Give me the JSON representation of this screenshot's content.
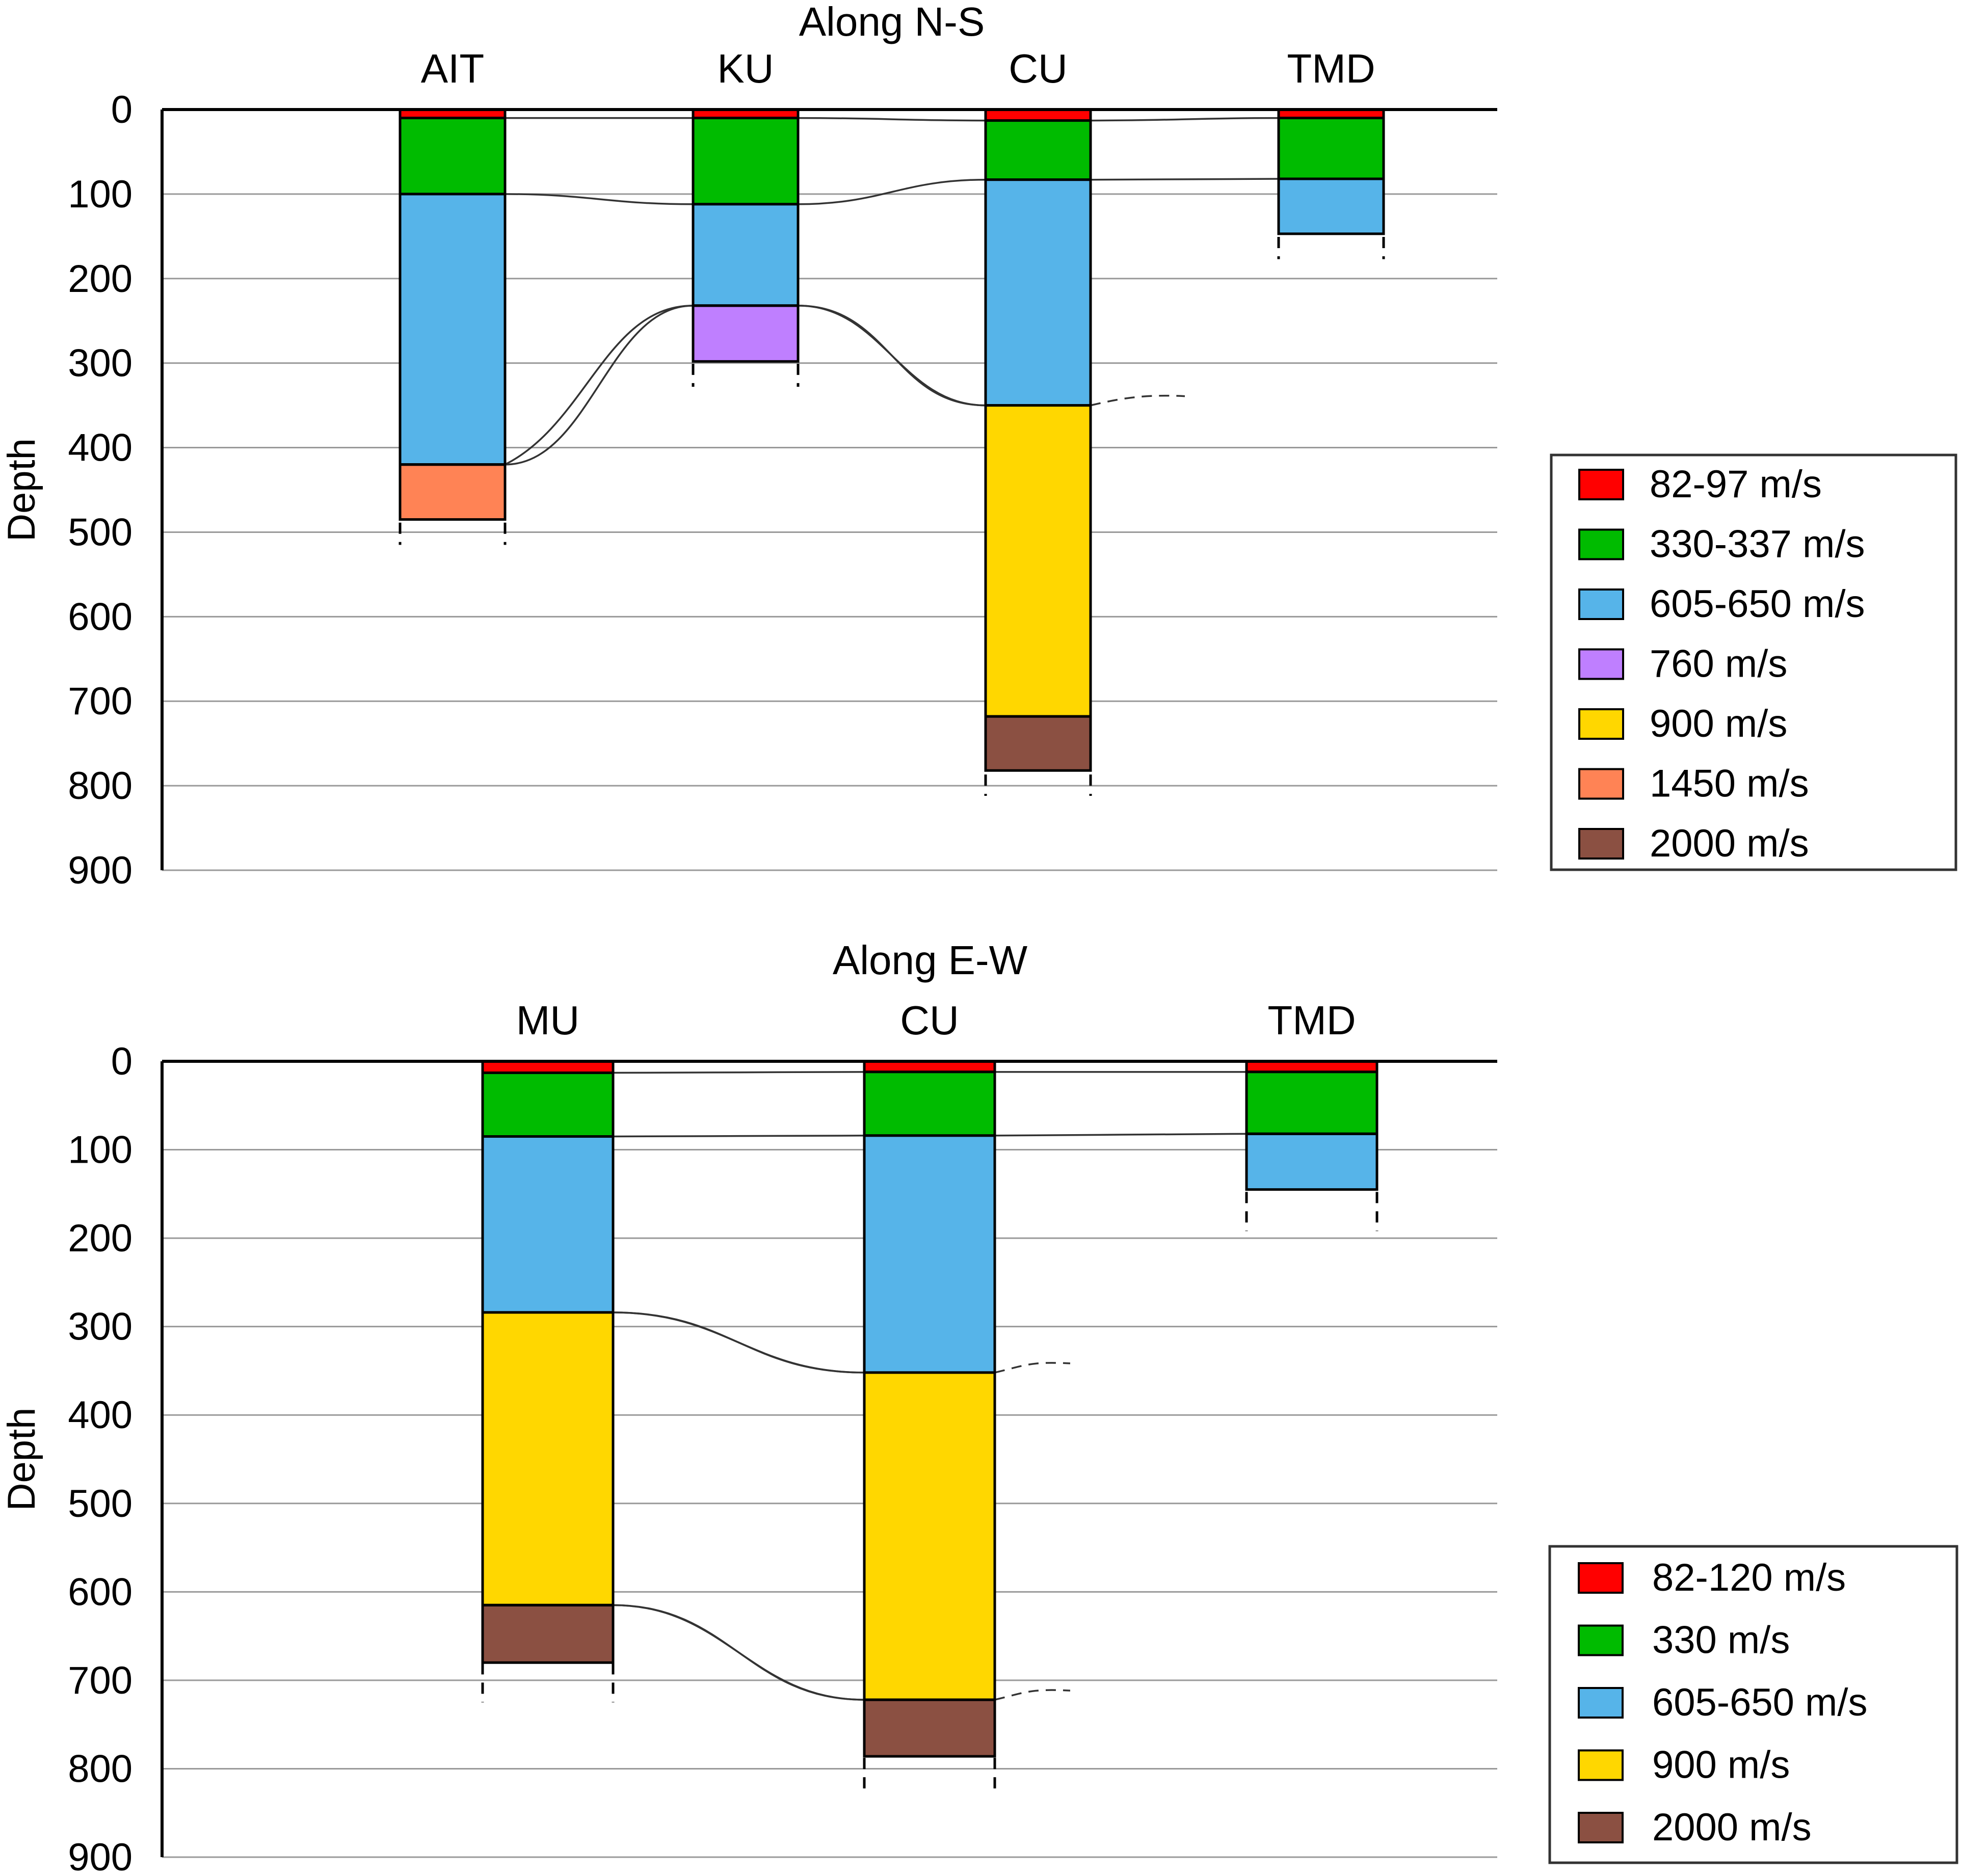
{
  "chart_data": [
    {
      "type": "stacked-bar-profile",
      "title": "Along N-S",
      "ylabel": "Depth",
      "ylim": [
        0,
        900
      ],
      "yticks": [
        0,
        100,
        200,
        300,
        400,
        500,
        600,
        700,
        800,
        900
      ],
      "stations": [
        {
          "name": "AIT",
          "layers": [
            {
              "velocity": "82-97 m/s",
              "top": 0,
              "bottom": 10
            },
            {
              "velocity": "330-337 m/s",
              "top": 10,
              "bottom": 100
            },
            {
              "velocity": "605-650 m/s",
              "top": 100,
              "bottom": 420
            },
            {
              "velocity": "1450 m/s",
              "top": 420,
              "bottom": 485,
              "open": true
            }
          ],
          "dash_to": 515
        },
        {
          "name": "KU",
          "layers": [
            {
              "velocity": "82-97 m/s",
              "top": 0,
              "bottom": 10
            },
            {
              "velocity": "330-337 m/s",
              "top": 10,
              "bottom": 112
            },
            {
              "velocity": "605-650 m/s",
              "top": 112,
              "bottom": 232
            },
            {
              "velocity": "760 m/s",
              "top": 232,
              "bottom": 298,
              "open": true
            }
          ],
          "dash_to": 328
        },
        {
          "name": "CU",
          "layers": [
            {
              "velocity": "82-97 m/s",
              "top": 0,
              "bottom": 13
            },
            {
              "velocity": "330-337 m/s",
              "top": 13,
              "bottom": 83
            },
            {
              "velocity": "605-650 m/s",
              "top": 83,
              "bottom": 350
            },
            {
              "velocity": "900 m/s",
              "top": 350,
              "bottom": 718
            },
            {
              "velocity": "2000 m/s",
              "top": 718,
              "bottom": 782,
              "open": true
            }
          ],
          "dash_to": 812
        },
        {
          "name": "TMD",
          "layers": [
            {
              "velocity": "82-97 m/s",
              "top": 0,
              "bottom": 10
            },
            {
              "velocity": "330-337 m/s",
              "top": 10,
              "bottom": 82
            },
            {
              "velocity": "605-650 m/s",
              "top": 82,
              "bottom": 147,
              "open": true
            }
          ],
          "dash_to": 177
        }
      ],
      "legend": [
        {
          "label": "82-97 m/s",
          "color": "#ff0000"
        },
        {
          "label": "330-337 m/s",
          "color": "#00bb00"
        },
        {
          "label": "605-650 m/s",
          "color": "#56b4e9"
        },
        {
          "label": "760 m/s",
          "color": "#bf7fff"
        },
        {
          "label": "900 m/s",
          "color": "#ffd700"
        },
        {
          "label": "1450 m/s",
          "color": "#ff8355"
        },
        {
          "label": "2000 m/s",
          "color": "#8b5042"
        }
      ]
    },
    {
      "type": "stacked-bar-profile",
      "title": "Along E-W",
      "ylabel": "Depth",
      "ylim": [
        0,
        900
      ],
      "yticks": [
        0,
        100,
        200,
        300,
        400,
        500,
        600,
        700,
        800,
        900
      ],
      "stations": [
        {
          "name": "MU",
          "layers": [
            {
              "velocity": "82-120 m/s",
              "top": 0,
              "bottom": 13
            },
            {
              "velocity": "330 m/s",
              "top": 13,
              "bottom": 85
            },
            {
              "velocity": "605-650 m/s",
              "top": 85,
              "bottom": 284
            },
            {
              "velocity": "900 m/s",
              "top": 284,
              "bottom": 615
            },
            {
              "velocity": "2000 m/s",
              "top": 615,
              "bottom": 680,
              "open": true
            }
          ],
          "dash_to": 725
        },
        {
          "name": "CU",
          "layers": [
            {
              "velocity": "82-120 m/s",
              "top": 0,
              "bottom": 12
            },
            {
              "velocity": "330 m/s",
              "top": 12,
              "bottom": 84
            },
            {
              "velocity": "605-650 m/s",
              "top": 84,
              "bottom": 352
            },
            {
              "velocity": "900 m/s",
              "top": 352,
              "bottom": 722
            },
            {
              "velocity": "2000 m/s",
              "top": 722,
              "bottom": 786,
              "open": true
            }
          ],
          "dash_to": 830
        },
        {
          "name": "TMD",
          "layers": [
            {
              "velocity": "82-120 m/s",
              "top": 0,
              "bottom": 12
            },
            {
              "velocity": "330 m/s",
              "top": 12,
              "bottom": 82
            },
            {
              "velocity": "605-650 m/s",
              "top": 82,
              "bottom": 145,
              "open": true
            }
          ],
          "dash_to": 192
        }
      ],
      "legend": [
        {
          "label": "82-120 m/s",
          "color": "#ff0000"
        },
        {
          "label": "330 m/s",
          "color": "#00bb00"
        },
        {
          "label": "605-650 m/s",
          "color": "#56b4e9"
        },
        {
          "label": "900 m/s",
          "color": "#ffd700"
        },
        {
          "label": "2000 m/s",
          "color": "#8b5042"
        }
      ]
    }
  ]
}
